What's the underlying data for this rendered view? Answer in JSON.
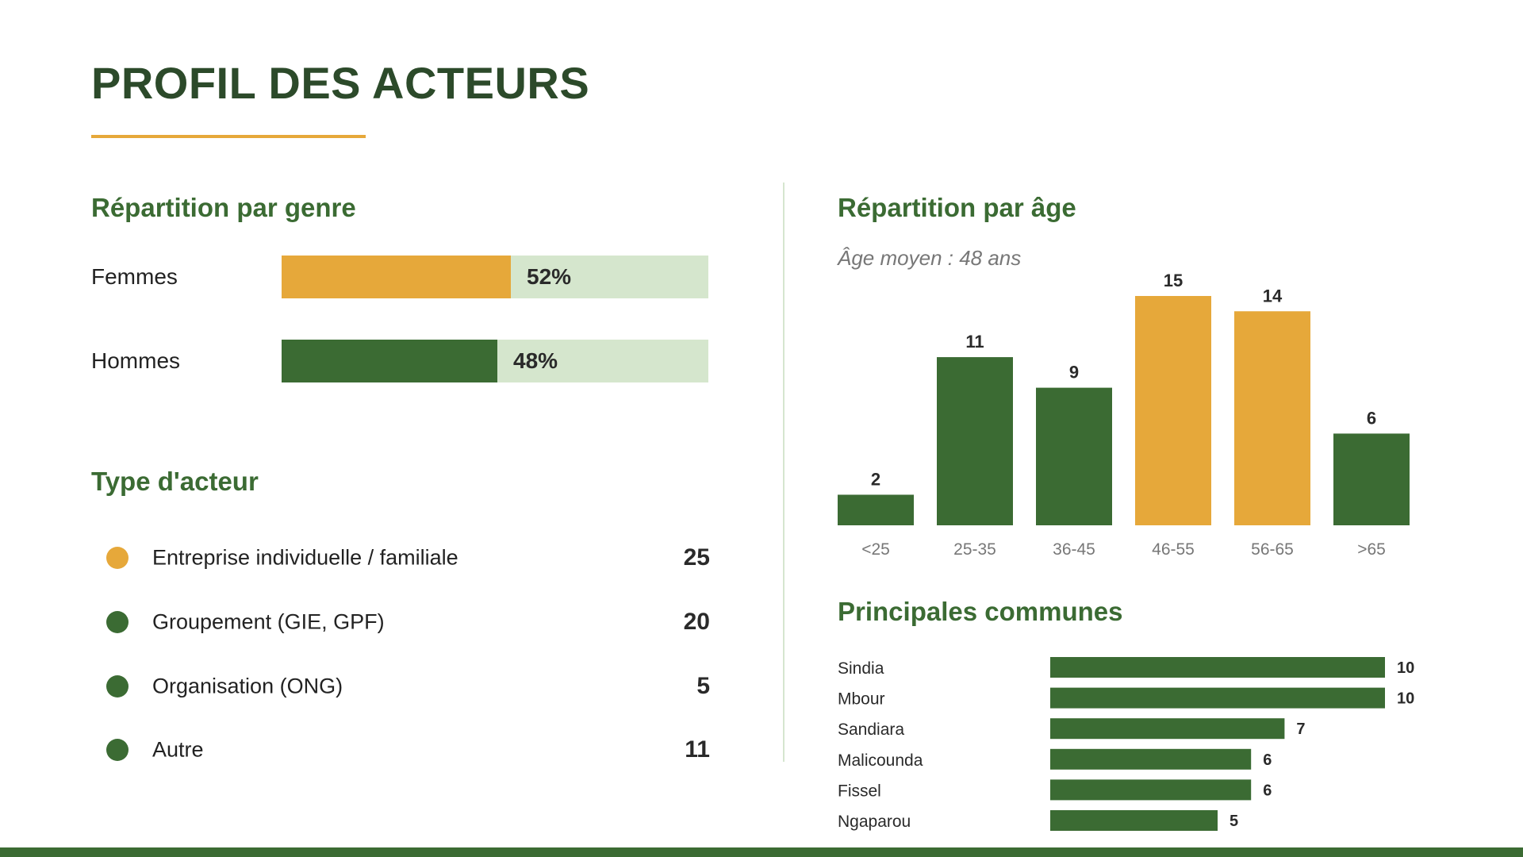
{
  "page": {
    "title": "PROFIL DES ACTEURS"
  },
  "colors": {
    "green": "#3b6b33",
    "orange": "#e6a83a",
    "light_green": "#d5e6cd",
    "title_dark": "#2c4a2a"
  },
  "genre": {
    "title": "Répartition par genre",
    "rows": [
      {
        "label": "Femmes",
        "pct_label": "52%",
        "value": 52,
        "color": "orange"
      },
      {
        "label": "Hommes",
        "pct_label": "48%",
        "value": 48,
        "color": "green"
      }
    ]
  },
  "type_acteur": {
    "title": "Type d'acteur",
    "rows": [
      {
        "label": "Entreprise individuelle / familiale",
        "count": "25",
        "color": "orange"
      },
      {
        "label": "Groupement (GIE, GPF)",
        "count": "20",
        "color": "green"
      },
      {
        "label": "Organisation (ONG)",
        "count": "5",
        "color": "green"
      },
      {
        "label": "Autre",
        "count": "11",
        "color": "green"
      }
    ]
  },
  "age": {
    "title": "Répartition par âge",
    "subtitle": "Âge moyen : 48 ans"
  },
  "communes": {
    "title": "Principales communes"
  },
  "chart_data": [
    {
      "type": "bar",
      "title": "Répartition par âge",
      "categories": [
        "<25",
        "25-35",
        "36-45",
        "46-55",
        "56-65",
        ">65"
      ],
      "values": [
        2,
        11,
        9,
        15,
        14,
        6
      ],
      "highlight": [
        false,
        false,
        false,
        true,
        true,
        false
      ],
      "ylim": [
        0,
        15
      ]
    },
    {
      "type": "bar",
      "orientation": "horizontal",
      "title": "Principales communes",
      "categories": [
        "Sindia",
        "Mbour",
        "Sandiara",
        "Malicounda",
        "Fissel",
        "Ngaparou"
      ],
      "values": [
        10,
        10,
        7,
        6,
        6,
        5
      ],
      "xlim": [
        0,
        10
      ]
    }
  ]
}
